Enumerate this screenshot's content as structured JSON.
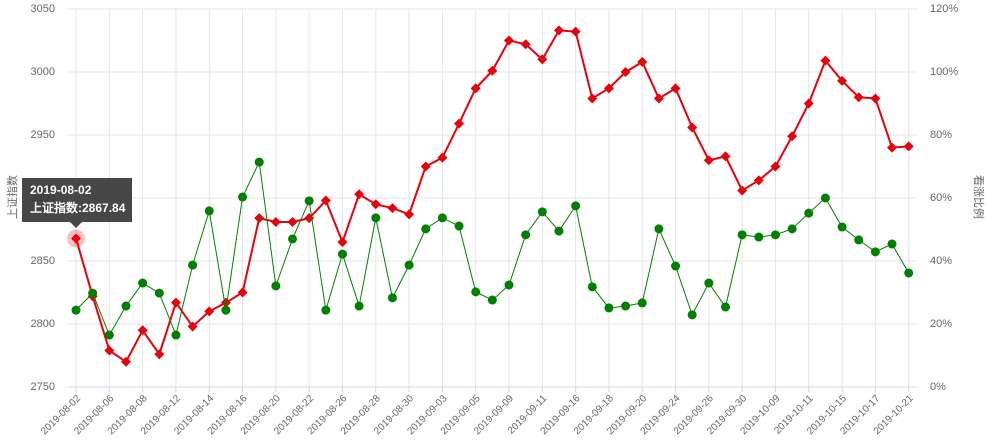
{
  "chart_data": {
    "type": "line",
    "y_label": "上证指数",
    "y2_label": "看涨比例",
    "categories": [
      "2019-08-02",
      null,
      "2019-08-06",
      null,
      "2019-08-08",
      null,
      "2019-08-12",
      null,
      "2019-08-14",
      null,
      "2019-08-16",
      null,
      "2019-08-20",
      null,
      "2019-08-22",
      null,
      "2019-08-26",
      null,
      "2019-08-28",
      null,
      "2019-08-30",
      null,
      "2019-09-03",
      null,
      "2019-09-05",
      null,
      "2019-09-09",
      null,
      "2019-09-11",
      null,
      "2019-09-16",
      null,
      "2019-09-18",
      null,
      "2019-09-20",
      null,
      "2019-09-24",
      null,
      "2019-09-26",
      null,
      "2019-09-30",
      null,
      "2019-10-09",
      null,
      "2019-10-11",
      null,
      "2019-10-15",
      null,
      "2019-10-17",
      null,
      "2019-10-21"
    ],
    "series": [
      {
        "color": "#e8000b",
        "marker": "diamond",
        "values": [
          2867.84,
          2822,
          2779,
          2770,
          2795,
          2776,
          2817,
          2798,
          2810,
          2817,
          2825,
          2884,
          2881,
          2881,
          2884,
          2898,
          2865,
          2903,
          2895,
          2892,
          2887,
          2925,
          2932,
          2959,
          2987,
          3001,
          3025,
          3022,
          3010,
          3033,
          3032,
          2979,
          2987,
          3000,
          3008,
          2979,
          2987,
          2956,
          2930,
          2933,
          2906,
          2914,
          2925,
          2949,
          2975,
          3009,
          2993,
          2980,
          2979,
          2940,
          2941
        ]
      },
      {
        "color": "#008000",
        "marker": "circle",
        "axis": "y2",
        "values": [
          24.4,
          29.8,
          16.5,
          25.7,
          33.0,
          29.8,
          16.5,
          38.7,
          55.9,
          24.4,
          60.3,
          71.4,
          32.1,
          47.0,
          59.1,
          24.4,
          42.2,
          25.7,
          53.7,
          28.3,
          38.7,
          50.2,
          53.7,
          51.1,
          30.2,
          27.6,
          32.4,
          48.3,
          55.6,
          49.5,
          57.5,
          31.8,
          25.1,
          25.7,
          26.7,
          50.2,
          38.4,
          22.9,
          33.0,
          25.4,
          48.3,
          47.6,
          48.3,
          50.2,
          55.2,
          60.0,
          50.8,
          46.7,
          42.9,
          45.4,
          36.2
        ]
      }
    ],
    "ylim": [
      2750,
      3050
    ],
    "yticks": [
      2750,
      2800,
      2850,
      2900,
      2950,
      3000,
      3050
    ],
    "y2lim": [
      0,
      120
    ],
    "y2ticks": [
      {
        "value": 0,
        "label": "0%"
      },
      {
        "value": 20,
        "label": "20%"
      },
      {
        "value": 40,
        "label": "40%"
      },
      {
        "value": 60,
        "label": "60%"
      },
      {
        "value": 80,
        "label": "80%"
      },
      {
        "value": 100,
        "label": "100%"
      },
      {
        "value": 120,
        "label": "120%"
      }
    ],
    "grid": true,
    "tooltip": {
      "title": "2019-08-02",
      "text": "上证指数:2867.84"
    }
  }
}
